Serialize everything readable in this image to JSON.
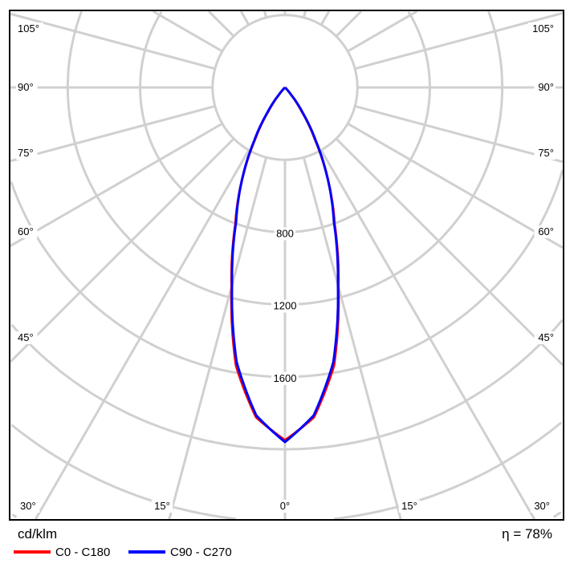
{
  "chart_data": {
    "type": "polar-line",
    "unit_label": "cd/klm",
    "efficiency_label": "η = 78%",
    "radial_ticks": [
      400,
      800,
      1200,
      1600,
      2000,
      2400,
      2800
    ],
    "radial_tick_labels": [
      "800",
      "1200",
      "1600"
    ],
    "angle_labels_left": [
      "105°",
      "90°",
      "75°",
      "60°",
      "45°",
      "30°"
    ],
    "angle_labels_bottom": [
      "15°",
      "0°",
      "15°"
    ],
    "angle_labels_right": [
      "105°",
      "90°",
      "75°",
      "60°",
      "45°",
      "30°"
    ],
    "angular_grid_step_deg": 15,
    "grid": true,
    "legend_placement": "bottom-left",
    "gamma_deg": [
      0,
      5,
      10,
      15,
      20,
      25,
      30,
      35,
      40,
      45,
      90
    ],
    "series": [
      {
        "name": "C0 - C180",
        "color": "#ff0000",
        "values": [
          1950,
          1830,
          1560,
          1140,
          800,
          560,
          330,
          160,
          50,
          0,
          0
        ]
      },
      {
        "name": "C90 - C270",
        "color": "#0000ff",
        "values": [
          1960,
          1820,
          1540,
          1130,
          790,
          560,
          340,
          170,
          55,
          0,
          0
        ]
      }
    ]
  }
}
